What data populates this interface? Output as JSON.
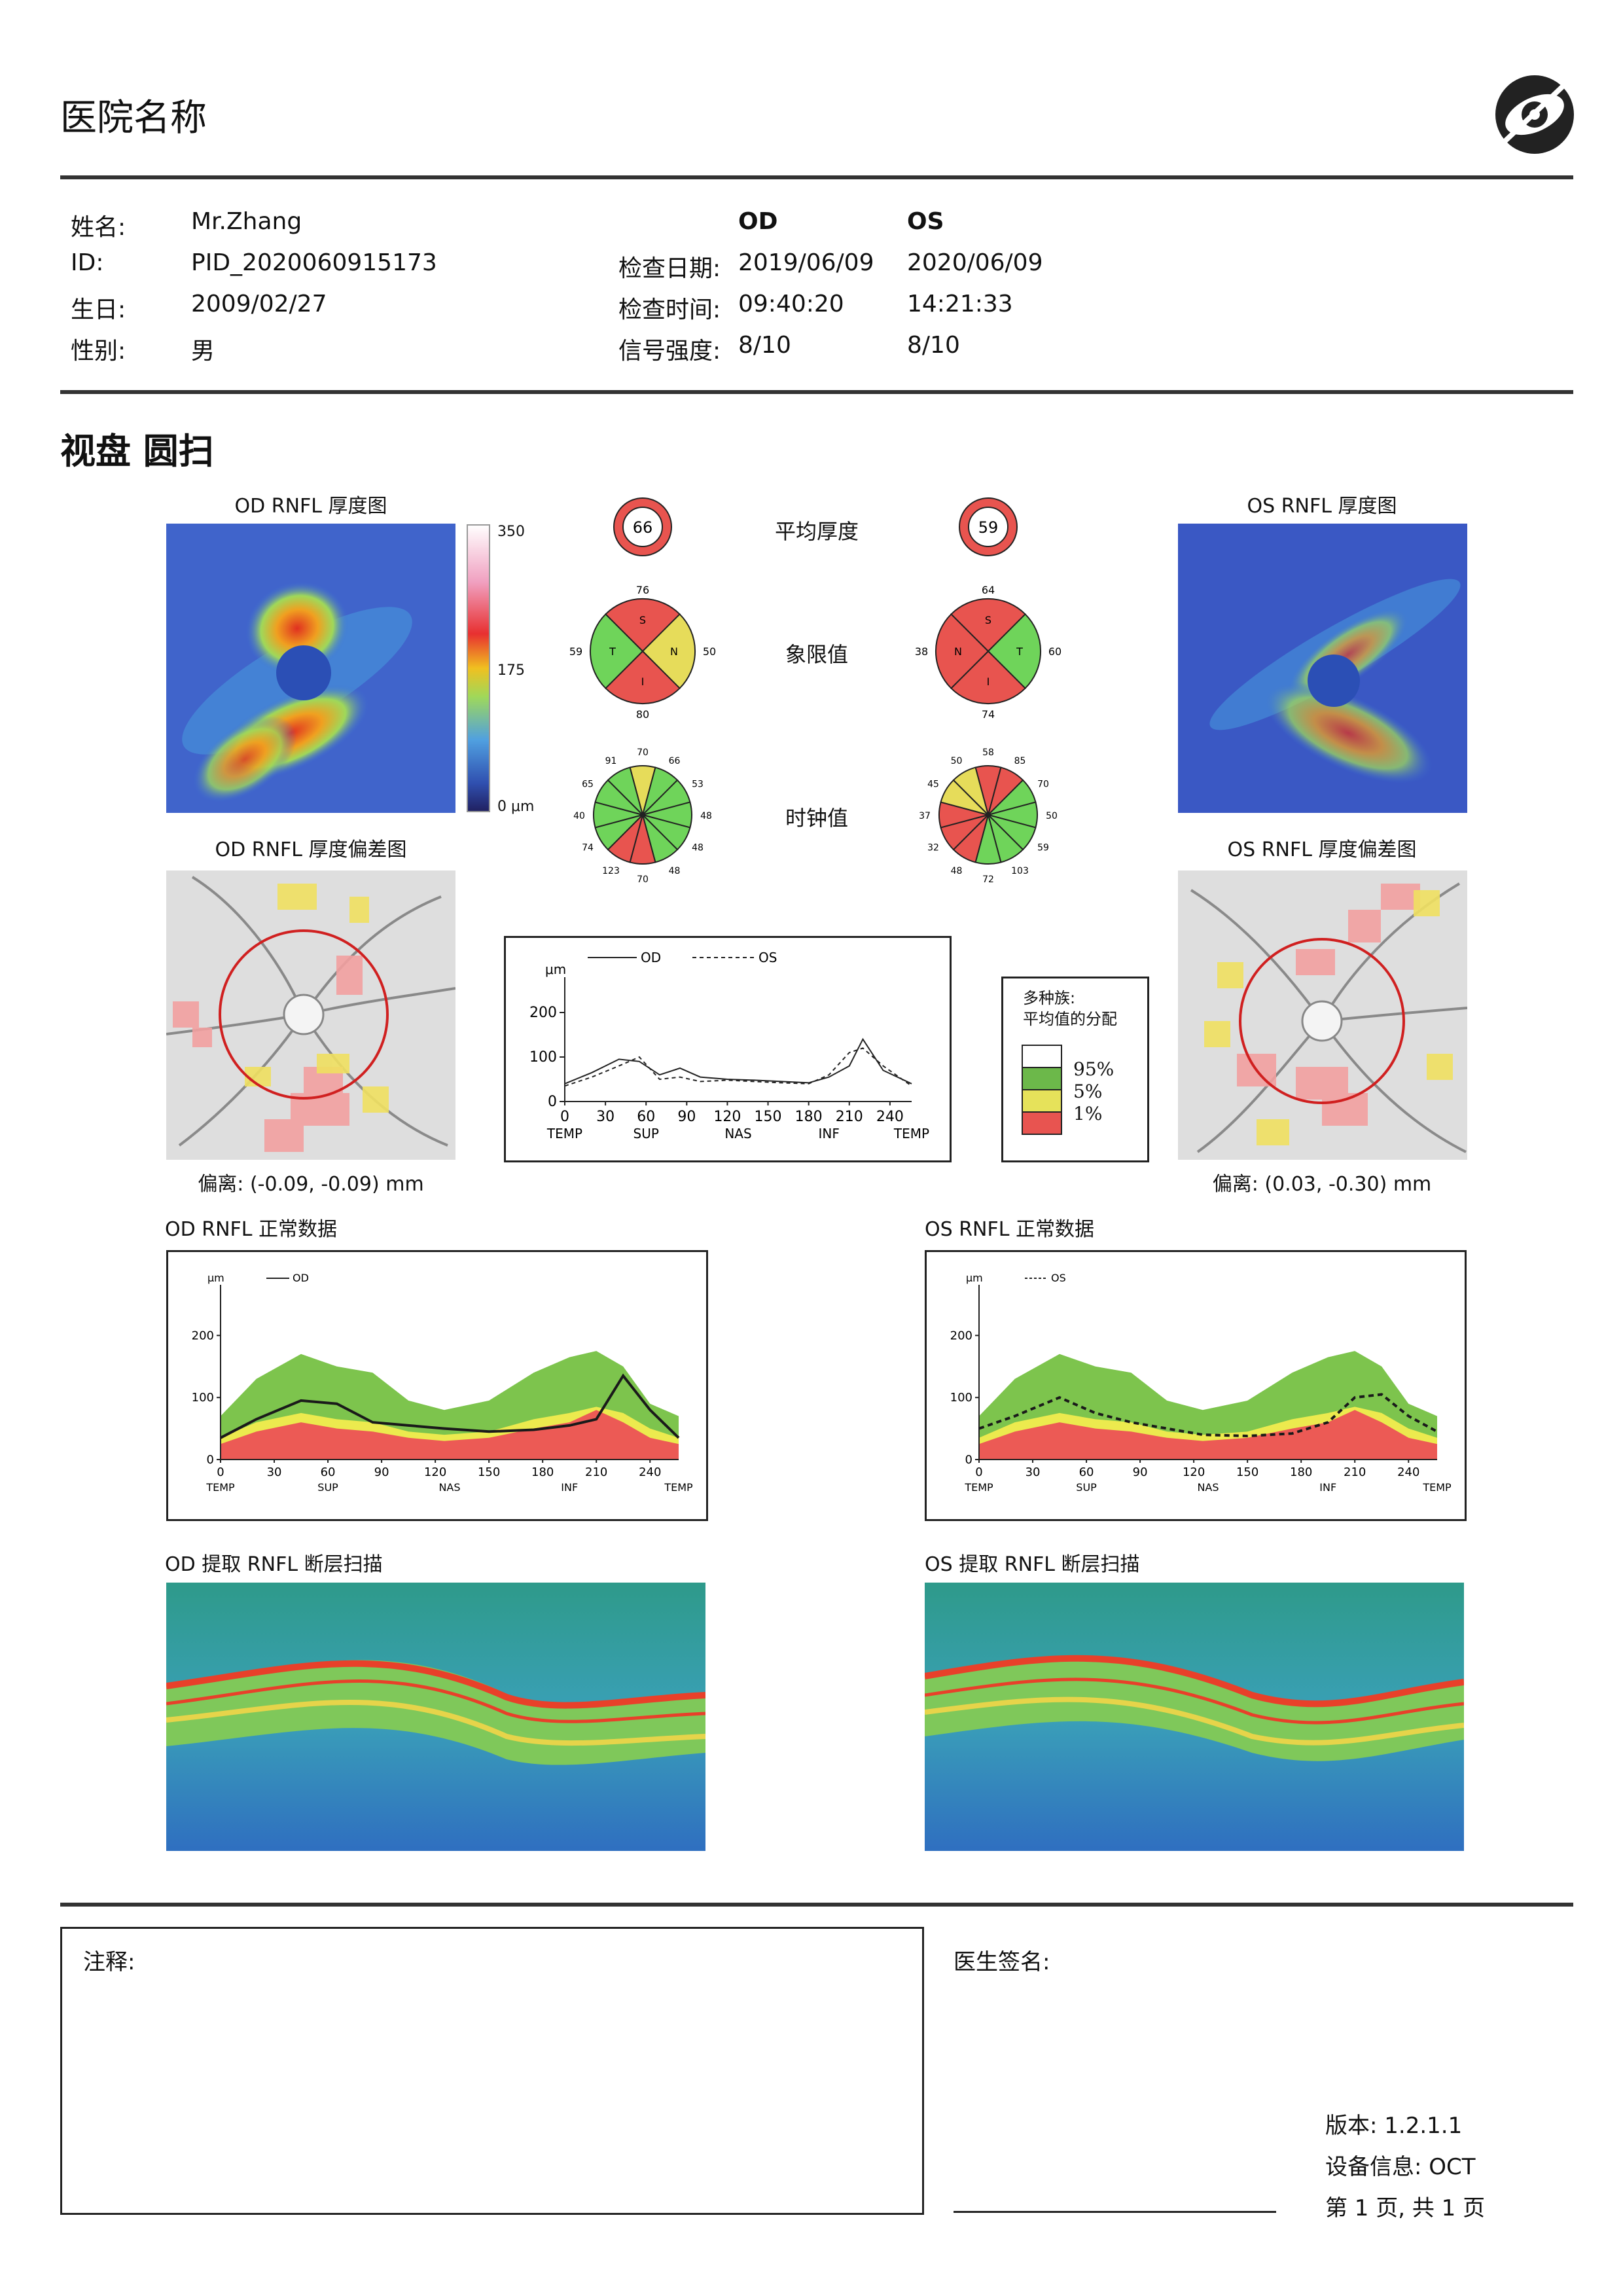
{
  "header": {
    "hospital_name": "医院名称",
    "logo_icon": "eye-logo-icon"
  },
  "patient": {
    "name_label": "姓名:",
    "name_value": "Mr.Zhang",
    "id_label": "ID:",
    "id_value": "PID_2020060915173",
    "dob_label": "生日:",
    "dob_value": "2009/02/27",
    "sex_label": "性别:",
    "sex_value": "男"
  },
  "exam": {
    "od_label": "OD",
    "os_label": "OS",
    "date_label": "检查日期:",
    "od_date": "2019/06/09",
    "os_date": "2020/06/09",
    "time_label": "检查时间:",
    "od_time": "09:40:20",
    "os_time": "14:21:33",
    "signal_label": "信号强度:",
    "od_signal": "8/10",
    "os_signal": "8/10"
  },
  "section_title": "视盘 圆扫",
  "thickness_maps": {
    "od_title": "OD RNFL 厚度图",
    "os_title": "OS RNFL 厚度图",
    "scale_top": "350",
    "scale_mid": "175",
    "scale_bottom": "0 μm"
  },
  "deviation_maps": {
    "od_title": "OD RNFL 厚度偏差图",
    "os_title": "OS RNFL 厚度偏差图",
    "od_offset": "偏离: (-0.09, -0.09) mm",
    "os_offset": "偏离: (0.03, -0.30) mm"
  },
  "center": {
    "avg_label": "平均厚度",
    "quadrant_label": "象限值",
    "clock_label": "时钟值",
    "od_avg": "66",
    "os_avg": "59",
    "od_quadrants": {
      "S": "76",
      "T": "59",
      "N": "50",
      "I": "80"
    },
    "os_quadrants": {
      "S": "64",
      "N": "38",
      "T": "60",
      "I": "74"
    },
    "quadrant_letters": {
      "s": "S",
      "t": "T",
      "n": "N",
      "i": "I"
    },
    "od_clock": [
      "70",
      "66",
      "53",
      "48",
      "48",
      "48",
      "70",
      "123",
      "74",
      "40",
      "65",
      "91"
    ],
    "os_clock": [
      "58",
      "85",
      "70",
      "50",
      "59",
      "103",
      "72",
      "48",
      "32",
      "37",
      "45",
      "50"
    ],
    "colors": {
      "red": "#e8544f",
      "green": "#6fd45a",
      "yellow": "#e6dc5a",
      "white": "#ffffff"
    }
  },
  "distribution_legend": {
    "title_line1": "多种族:",
    "title_line2": "平均值的分配",
    "p95": "95%",
    "p5": "5%",
    "p1": "1%"
  },
  "tsnit_compare": {
    "unit": "μm",
    "od_legend": "OD",
    "os_legend": "OS",
    "y_ticks": [
      "200",
      "100",
      "0"
    ],
    "x_ticks": [
      "0",
      "30",
      "60",
      "90",
      "120",
      "150",
      "180",
      "210",
      "240"
    ],
    "region_labels": [
      "TEMP",
      "SUP",
      "NAS",
      "INF",
      "TEMP"
    ]
  },
  "normative": {
    "od_title": "OD RNFL 正常数据",
    "os_title": "OS RNFL 正常数据",
    "unit": "μm",
    "od_legend": "OD",
    "os_legend": "OS",
    "y_ticks": [
      "200",
      "100",
      "0"
    ],
    "x_ticks": [
      "0",
      "30",
      "60",
      "90",
      "120",
      "150",
      "180",
      "210",
      "240"
    ],
    "region_labels": [
      "TEMP",
      "SUP",
      "NAS",
      "INF",
      "TEMP"
    ]
  },
  "bscans": {
    "od_title": "OD 提取 RNFL 断层扫描",
    "os_title": "OS 提取 RNFL 断层扫描"
  },
  "chart_data": [
    {
      "type": "line",
      "title": "TSNIT OD vs OS",
      "xlabel": "",
      "ylabel": "μm",
      "xlim": [
        0,
        256
      ],
      "ylim": [
        0,
        250
      ],
      "x": [
        0,
        20,
        40,
        55,
        70,
        85,
        100,
        120,
        140,
        160,
        180,
        195,
        210,
        220,
        235,
        256
      ],
      "series": [
        {
          "name": "OD",
          "values": [
            40,
            65,
            95,
            90,
            60,
            75,
            55,
            50,
            48,
            45,
            42,
            55,
            80,
            140,
            70,
            40
          ]
        },
        {
          "name": "OS",
          "values": [
            35,
            55,
            80,
            100,
            50,
            55,
            45,
            48,
            45,
            42,
            40,
            60,
            110,
            120,
            80,
            35
          ]
        }
      ]
    },
    {
      "type": "area",
      "title": "OD RNFL 正常数据",
      "ylabel": "μm",
      "xlim": [
        0,
        256
      ],
      "ylim": [
        0,
        250
      ],
      "x": [
        0,
        20,
        45,
        65,
        85,
        105,
        125,
        150,
        175,
        195,
        210,
        225,
        240,
        256
      ],
      "normal_upper": [
        70,
        130,
        170,
        150,
        140,
        95,
        80,
        95,
        140,
        165,
        175,
        150,
        90,
        70
      ],
      "borderline_upper": [
        35,
        60,
        75,
        65,
        60,
        45,
        40,
        45,
        65,
        75,
        85,
        75,
        50,
        35
      ],
      "abnormal_upper": [
        25,
        45,
        60,
        50,
        45,
        35,
        30,
        35,
        50,
        60,
        80,
        60,
        35,
        25
      ],
      "series": [
        {
          "name": "OD",
          "values": [
            35,
            65,
            95,
            90,
            60,
            55,
            50,
            45,
            48,
            55,
            65,
            135,
            80,
            35
          ]
        }
      ]
    },
    {
      "type": "area",
      "title": "OS RNFL 正常数据",
      "ylabel": "μm",
      "xlim": [
        0,
        256
      ],
      "ylim": [
        0,
        250
      ],
      "x": [
        0,
        20,
        45,
        65,
        85,
        105,
        125,
        150,
        175,
        195,
        210,
        225,
        240,
        256
      ],
      "normal_upper": [
        70,
        130,
        170,
        150,
        140,
        95,
        80,
        95,
        140,
        165,
        175,
        150,
        90,
        70
      ],
      "borderline_upper": [
        35,
        60,
        75,
        65,
        60,
        45,
        40,
        45,
        65,
        75,
        85,
        75,
        50,
        35
      ],
      "abnormal_upper": [
        25,
        45,
        60,
        50,
        45,
        35,
        30,
        35,
        50,
        60,
        80,
        60,
        35,
        25
      ],
      "series": [
        {
          "name": "OS",
          "values": [
            50,
            70,
            100,
            75,
            60,
            50,
            40,
            38,
            42,
            60,
            100,
            105,
            70,
            45
          ]
        }
      ]
    }
  ],
  "footer": {
    "notes_label": "注释:",
    "doctor_label": "医生签名:",
    "version": "版本: 1.2.1.1",
    "device": "设备信息: OCT",
    "page": "第 1 页, 共 1 页"
  }
}
